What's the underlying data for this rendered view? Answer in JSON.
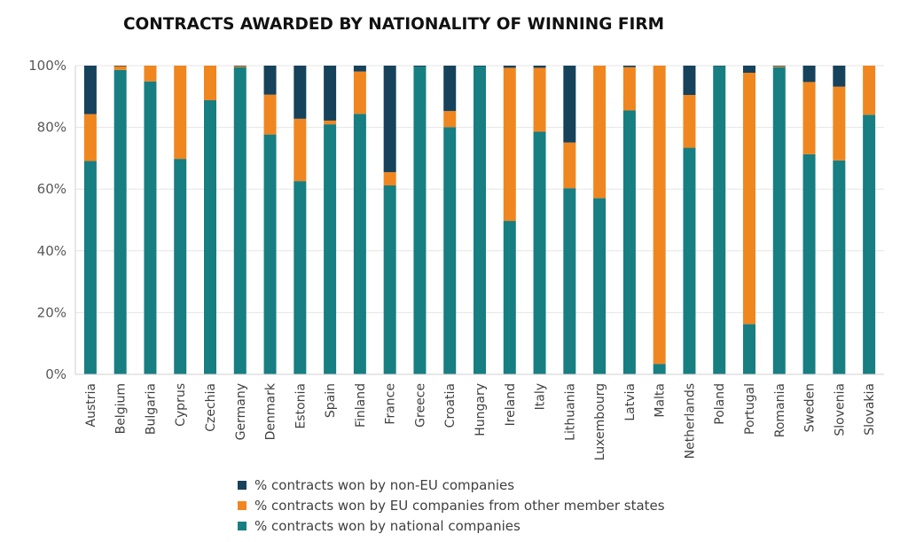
{
  "chart_data": {
    "type": "bar",
    "stacked": true,
    "title": "CONTRACTS AWARDED BY NATIONALITY OF WINNING FIRM",
    "xlabel": "",
    "ylabel": "",
    "ylim": [
      0,
      100
    ],
    "yticks": [
      0,
      20,
      40,
      60,
      80,
      100
    ],
    "ytick_labels": [
      "0%",
      "20%",
      "40%",
      "60%",
      "80%",
      "100%"
    ],
    "grid": true,
    "legend_position": "bottom",
    "categories": [
      "Austria",
      "Belgium",
      "Bulgaria",
      "Cyprus",
      "Czechia",
      "Germany",
      "Denmark",
      "Estonia",
      "Spain",
      "Finland",
      "France",
      "Greece",
      "Croatia",
      "Hungary",
      "Ireland",
      "Italy",
      "Lithuania",
      "Luxembourg",
      "Latvia",
      "Malta",
      "Netherlands",
      "Poland",
      "Portugal",
      "Romania",
      "Sweden",
      "Slovenia",
      "Slovakia"
    ],
    "series": [
      {
        "name": "% contracts won by national companies",
        "color": "#177e82",
        "values": [
          69.1,
          98.6,
          94.9,
          69.8,
          88.8,
          99.5,
          77.7,
          62.6,
          81.0,
          84.4,
          61.2,
          99.7,
          80.1,
          99.9,
          49.7,
          78.6,
          60.3,
          57.1,
          85.5,
          3.4,
          73.4,
          99.8,
          16.3,
          99.5,
          71.3,
          69.3,
          84.1
        ]
      },
      {
        "name": "% contracts won by EU companies from other member states",
        "color": "#f0861f",
        "values": [
          15.2,
          1.3,
          5.1,
          30.2,
          11.2,
          0.4,
          12.9,
          20.2,
          1.2,
          13.7,
          4.3,
          0.0,
          5.2,
          0.0,
          49.6,
          20.7,
          14.8,
          42.9,
          14.0,
          96.6,
          17.1,
          0.0,
          81.4,
          0.3,
          23.4,
          23.9,
          15.9
        ]
      },
      {
        "name": "% contracts won by non-EU companies",
        "color": "#16425b",
        "values": [
          15.7,
          0.1,
          0.0,
          0.0,
          0.0,
          0.1,
          9.4,
          17.2,
          17.8,
          1.9,
          34.5,
          0.3,
          14.7,
          0.1,
          0.7,
          0.7,
          24.9,
          0.0,
          0.5,
          0.0,
          9.5,
          0.2,
          2.3,
          0.2,
          5.3,
          6.8,
          0.0
        ]
      }
    ]
  },
  "legend": [
    {
      "label": "% contracts won by non-EU companies",
      "color": "#16425b"
    },
    {
      "label": "% contracts won by EU companies from other member states",
      "color": "#f0861f"
    },
    {
      "label": "% contracts won by national companies",
      "color": "#177e82"
    }
  ]
}
